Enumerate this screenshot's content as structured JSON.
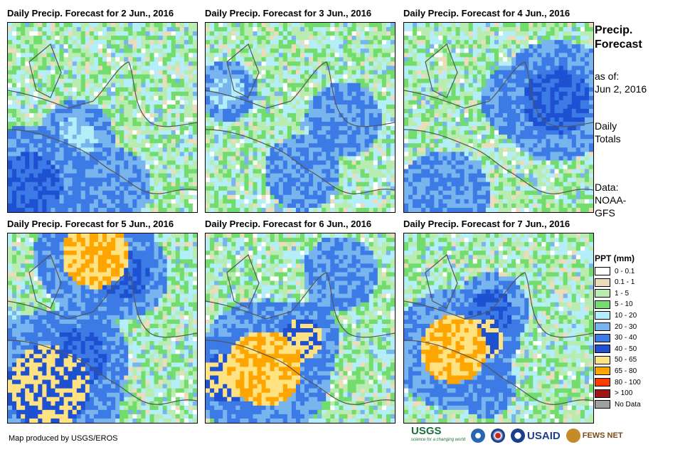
{
  "panels": [
    {
      "title": "Daily Precip. Forecast for 2 Jun., 2016",
      "seed": 11,
      "blobs": [
        [
          0.1,
          0.85,
          0.08,
          5
        ],
        [
          0.55,
          0.85,
          0.05,
          4
        ],
        [
          0.35,
          0.6,
          0.05,
          3
        ]
      ]
    },
    {
      "title": "Daily Precip. Forecast for 3 Jun., 2016",
      "seed": 23,
      "blobs": [
        [
          0.72,
          0.5,
          0.05,
          4
        ],
        [
          0.5,
          0.78,
          0.05,
          4
        ],
        [
          0.1,
          0.35,
          0.04,
          3
        ]
      ]
    },
    {
      "title": "Daily Precip. Forecast for 4 Jun., 2016",
      "seed": 37,
      "blobs": [
        [
          0.8,
          0.4,
          0.08,
          5
        ],
        [
          0.6,
          0.4,
          0.05,
          4
        ],
        [
          0.2,
          0.9,
          0.06,
          4
        ]
      ]
    },
    {
      "title": "Daily Precip. Forecast for 5 Jun., 2016",
      "seed": 41,
      "blobs": [
        [
          0.45,
          0.1,
          0.08,
          7
        ],
        [
          0.2,
          0.8,
          0.1,
          6
        ],
        [
          0.35,
          0.65,
          0.07,
          5
        ],
        [
          0.6,
          0.2,
          0.06,
          5
        ]
      ]
    },
    {
      "title": "Daily Precip. Forecast for 6 Jun., 2016",
      "seed": 53,
      "blobs": [
        [
          0.3,
          0.7,
          0.09,
          7
        ],
        [
          0.1,
          0.75,
          0.06,
          6
        ],
        [
          0.5,
          0.55,
          0.05,
          6
        ],
        [
          0.7,
          0.2,
          0.05,
          4
        ]
      ]
    },
    {
      "title": "Daily Precip. Forecast for 7 Jun., 2016",
      "seed": 67,
      "blobs": [
        [
          0.25,
          0.6,
          0.08,
          7
        ],
        [
          0.4,
          0.55,
          0.05,
          6
        ],
        [
          0.45,
          0.4,
          0.05,
          5
        ],
        [
          0.42,
          0.8,
          0.04,
          4
        ]
      ]
    }
  ],
  "side": {
    "title_line1": "Precip.",
    "title_line2": "Forecast",
    "asof_label": "as of:",
    "asof_date": "Jun 2, 2016",
    "totals_line1": "Daily",
    "totals_line2": "Totals",
    "data_line1": "Data:",
    "data_line2": "NOAA-",
    "data_line3": "GFS"
  },
  "legend": {
    "title": "PPT (mm)",
    "items": [
      {
        "label": "0 - 0.1",
        "color": "#ffffff"
      },
      {
        "label": "0.1 - 1",
        "color": "#eddcbc"
      },
      {
        "label": "1 - 5",
        "color": "#b8ecb0"
      },
      {
        "label": "5 - 10",
        "color": "#72dc6c"
      },
      {
        "label": "10 - 20",
        "color": "#b4eef8"
      },
      {
        "label": "20 - 30",
        "color": "#78b4ee"
      },
      {
        "label": "30 - 40",
        "color": "#3c7ae6"
      },
      {
        "label": "40 - 50",
        "color": "#1e50d2"
      },
      {
        "label": "50 - 65",
        "color": "#ffe282"
      },
      {
        "label": "65 - 80",
        "color": "#ffa500"
      },
      {
        "label": "80 - 100",
        "color": "#ff3c00"
      },
      {
        "label": "> 100",
        "color": "#a01414"
      },
      {
        "label": "No Data",
        "color": "#a0a0a0"
      }
    ]
  },
  "credit": "Map produced by USGS/EROS",
  "logos": {
    "usgs": "USGS",
    "usgs_tag": "science for a changing world",
    "usaid": "USAID",
    "fewsnet": "FEWS NET"
  }
}
